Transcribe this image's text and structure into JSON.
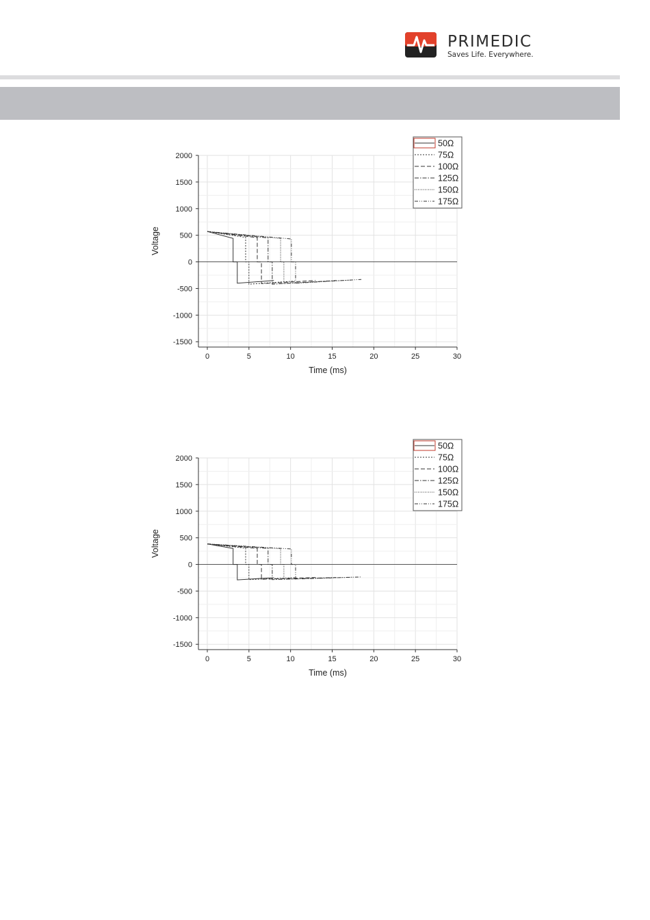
{
  "brand": {
    "name": "PRIMEDIC",
    "tagline": "Saves Life. Everywhere.",
    "accent_color": "#e2412b"
  },
  "chart_data": [
    {
      "type": "line",
      "xlabel": "Time (ms)",
      "ylabel": "Voltage",
      "xlim": [
        0,
        30
      ],
      "ylim": [
        -1600,
        2000
      ],
      "x_ticks": [
        0,
        5,
        10,
        15,
        20,
        25,
        30
      ],
      "y_ticks": [
        2000,
        1500,
        1000,
        500,
        0,
        -500,
        -1000,
        -1500
      ],
      "grid": true,
      "legend": "top-right",
      "series": [
        {
          "name": "50Ω",
          "dash": "solid",
          "t1": 3.1,
          "t2": 3.6,
          "t_end": 8.0,
          "v0": 570,
          "v1": 440,
          "v2": -400,
          "v_end": -350
        },
        {
          "name": "75Ω",
          "dash": "dot",
          "t1": 4.6,
          "t2": 5.0,
          "t_end": 10.5,
          "v0": 570,
          "v1": 460,
          "v2": -420,
          "v_end": -360
        },
        {
          "name": "100Ω",
          "dash": "dash",
          "t1": 6.0,
          "t2": 6.5,
          "t_end": 13.0,
          "v0": 570,
          "v1": 455,
          "v2": -410,
          "v_end": -350
        },
        {
          "name": "125Ω",
          "dash": "dashdot",
          "t1": 7.3,
          "t2": 7.8,
          "t_end": 15.5,
          "v0": 570,
          "v1": 450,
          "v2": -420,
          "v_end": -350
        },
        {
          "name": "150Ω",
          "dash": "shortdot",
          "t1": 8.8,
          "t2": 9.2,
          "t_end": 17.5,
          "v0": 570,
          "v1": 440,
          "v2": -405,
          "v_end": -340
        },
        {
          "name": "175Ω",
          "dash": "dashdotdot",
          "t1": 10.1,
          "t2": 10.6,
          "t_end": 18.5,
          "v0": 570,
          "v1": 430,
          "v2": -400,
          "v_end": -330
        }
      ]
    },
    {
      "type": "line",
      "xlabel": "Time (ms)",
      "ylabel": "Voltage",
      "xlim": [
        0,
        30
      ],
      "ylim": [
        -1600,
        2000
      ],
      "x_ticks": [
        0,
        5,
        10,
        15,
        20,
        25,
        30
      ],
      "y_ticks": [
        2000,
        1500,
        1000,
        500,
        0,
        -500,
        -1000,
        -1500
      ],
      "grid": true,
      "legend": "top-right",
      "series": [
        {
          "name": "50Ω",
          "dash": "solid",
          "t1": 3.1,
          "t2": 3.6,
          "t_end": 8.0,
          "v0": 385,
          "v1": 300,
          "v2": -290,
          "v_end": -250
        },
        {
          "name": "75Ω",
          "dash": "dot",
          "t1": 4.6,
          "t2": 5.0,
          "t_end": 10.5,
          "v0": 385,
          "v1": 305,
          "v2": -285,
          "v_end": -250
        },
        {
          "name": "100Ω",
          "dash": "dash",
          "t1": 6.0,
          "t2": 6.5,
          "t_end": 13.0,
          "v0": 385,
          "v1": 300,
          "v2": -280,
          "v_end": -245
        },
        {
          "name": "125Ω",
          "dash": "dashdot",
          "t1": 7.3,
          "t2": 7.8,
          "t_end": 15.5,
          "v0": 385,
          "v1": 300,
          "v2": -285,
          "v_end": -245
        },
        {
          "name": "150Ω",
          "dash": "shortdot",
          "t1": 8.8,
          "t2": 9.2,
          "t_end": 17.5,
          "v0": 385,
          "v1": 295,
          "v2": -280,
          "v_end": -240
        },
        {
          "name": "175Ω",
          "dash": "dashdotdot",
          "t1": 10.1,
          "t2": 10.6,
          "t_end": 18.5,
          "v0": 385,
          "v1": 290,
          "v2": -275,
          "v_end": -235
        }
      ]
    }
  ]
}
